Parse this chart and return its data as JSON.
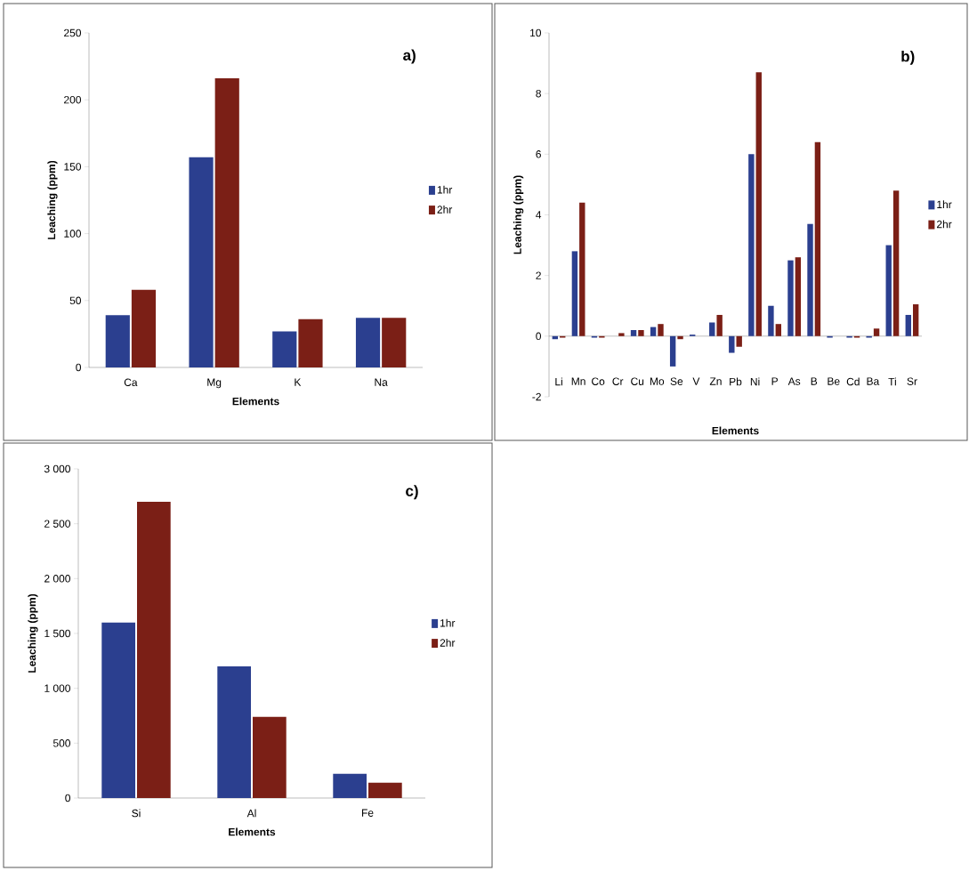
{
  "chart_data": [
    {
      "type": "bar",
      "title": "a)",
      "xlabel": "Elements",
      "ylabel": "Leaching (ppm)",
      "categories": [
        "Ca",
        "Mg",
        "K",
        "Na"
      ],
      "series": [
        {
          "name": "1hr",
          "color": "#2b3f8f",
          "values": [
            39,
            157,
            27,
            37
          ]
        },
        {
          "name": "2hr",
          "color": "#7b1f16",
          "values": [
            58,
            216,
            36,
            37
          ]
        }
      ],
      "ylim": [
        0,
        250
      ],
      "yticks": [
        0,
        50,
        100,
        150,
        200,
        250
      ],
      "legend": "right"
    },
    {
      "type": "bar",
      "title": "b)",
      "xlabel": "Elements",
      "ylabel": "Leaching (ppm)",
      "categories": [
        "Li",
        "Mn",
        "Co",
        "Cr",
        "Cu",
        "Mo",
        "Se",
        "V",
        "Zn",
        "Pb",
        "Ni",
        "P",
        "As",
        "B",
        "Be",
        "Cd",
        "Ba",
        "Ti",
        "Sr"
      ],
      "series": [
        {
          "name": "1hr",
          "color": "#2b3f8f",
          "values": [
            -0.1,
            2.8,
            -0.05,
            0,
            0.2,
            0.3,
            -1.0,
            0.05,
            0.45,
            -0.55,
            6.0,
            1.0,
            2.5,
            3.7,
            -0.05,
            -0.05,
            -0.05,
            3.0,
            0.7
          ]
        },
        {
          "name": "2hr",
          "color": "#7b1f16",
          "values": [
            -0.05,
            4.4,
            -0.05,
            0.1,
            0.2,
            0.4,
            -0.1,
            0,
            0.7,
            -0.35,
            8.7,
            0.4,
            2.6,
            6.4,
            0,
            -0.05,
            0.25,
            4.8,
            1.05
          ]
        }
      ],
      "ylim": [
        -2,
        10
      ],
      "yticks": [
        -2,
        0,
        2,
        4,
        6,
        8,
        10
      ],
      "legend": "right"
    },
    {
      "type": "bar",
      "title": "c)",
      "xlabel": "Elements",
      "ylabel": "Leaching (ppm)",
      "categories": [
        "Si",
        "Al",
        "Fe"
      ],
      "series": [
        {
          "name": "1hr",
          "color": "#2b3f8f",
          "values": [
            1600,
            1200,
            220
          ]
        },
        {
          "name": "2hr",
          "color": "#7b1f16",
          "values": [
            2700,
            740,
            140
          ]
        }
      ],
      "ylim": [
        0,
        3000
      ],
      "yticks": [
        0,
        500,
        {
          "value": 1000,
          "label": "1 000"
        },
        {
          "value": 1500,
          "label": "1 500"
        },
        {
          "value": 2000,
          "label": "2 000"
        },
        {
          "value": 2500,
          "label": "2 500"
        },
        {
          "value": 3000,
          "label": "3 000"
        }
      ],
      "legend": "right"
    }
  ]
}
